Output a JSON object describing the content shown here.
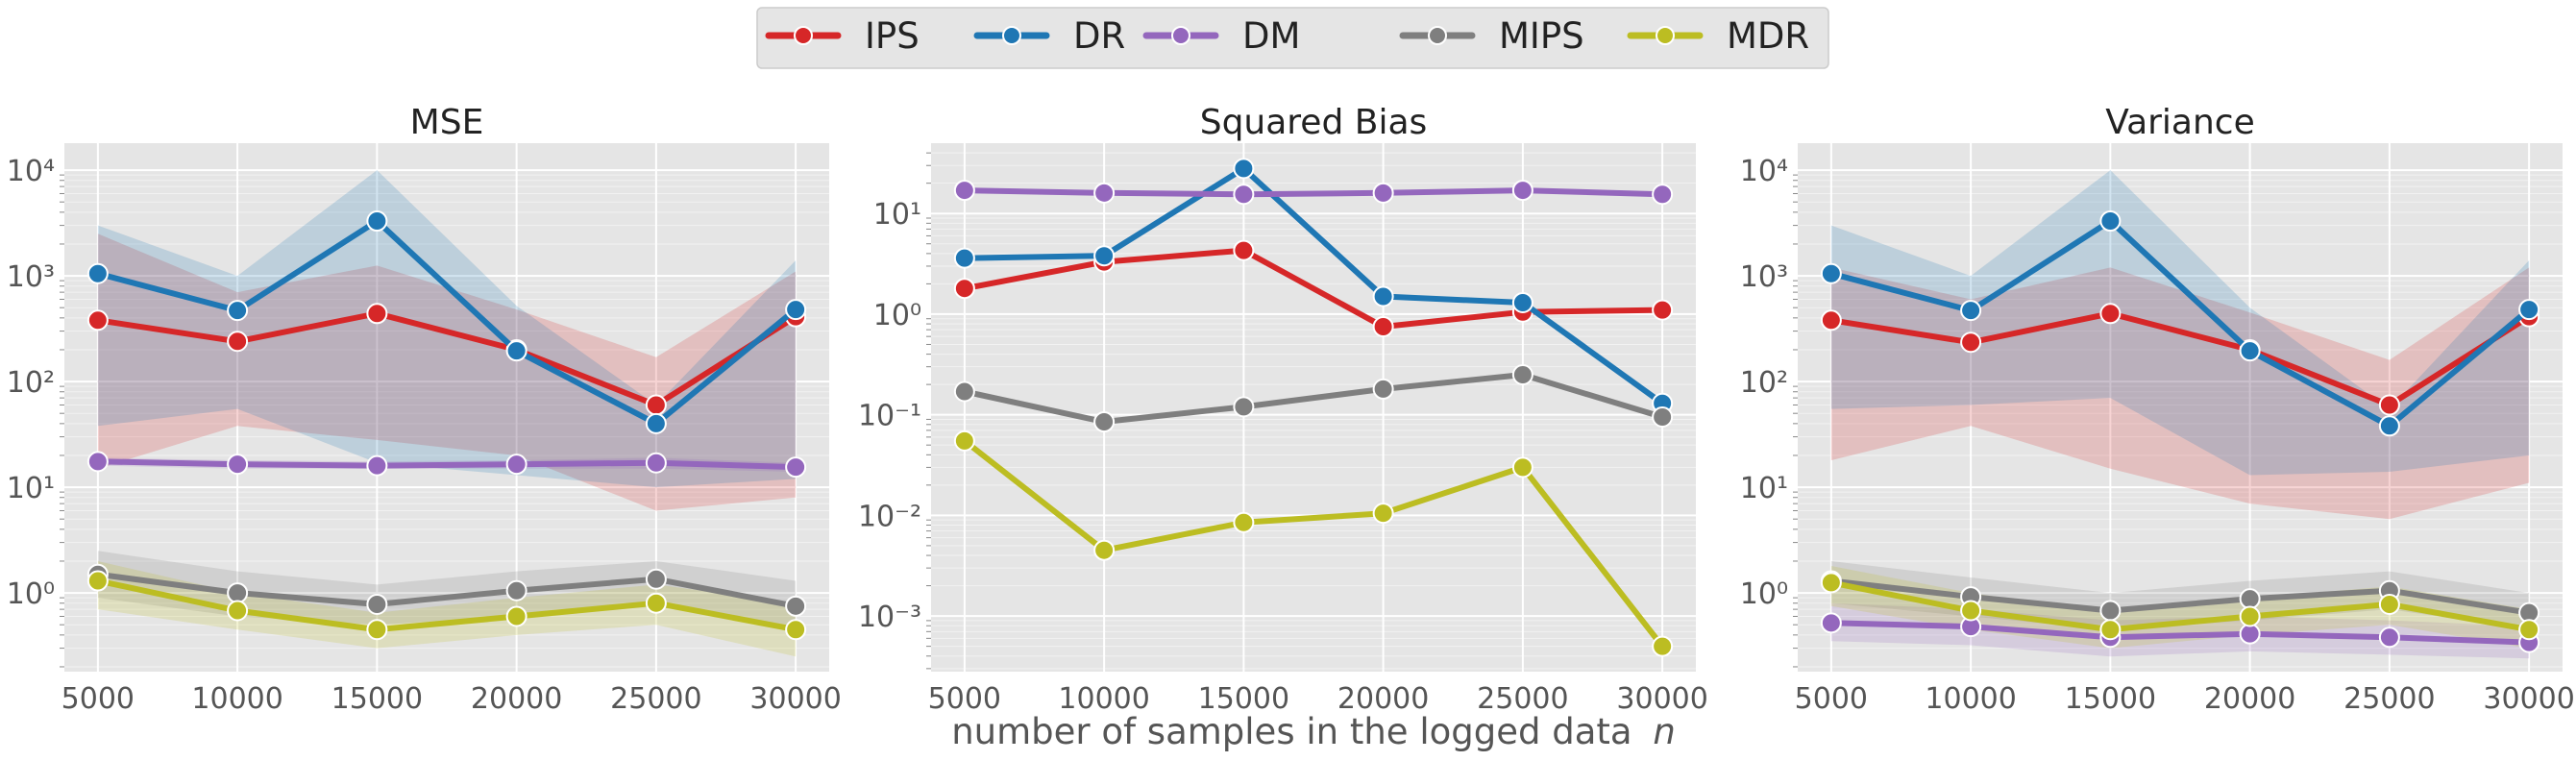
{
  "legend": {
    "placement": "top-center",
    "entries": [
      {
        "name": "IPS",
        "color": "#d62728"
      },
      {
        "name": "DR",
        "color": "#1f77b4"
      },
      {
        "name": "DM",
        "color": "#9467bd"
      },
      {
        "name": "MIPS",
        "color": "#7f7f7f"
      },
      {
        "name": "MDR",
        "color": "#bcbd22"
      }
    ]
  },
  "shared_xlabel": "number of samples in the logged data",
  "shared_xlabel_var": "n",
  "chart_data": [
    {
      "type": "line",
      "title": "MSE",
      "yscale": "log",
      "ylim": [
        0.18,
        18000
      ],
      "yticks": [
        1,
        10,
        100,
        1000,
        10000
      ],
      "xlim": [
        3800,
        31200
      ],
      "x": [
        5000,
        10000,
        15000,
        20000,
        25000,
        30000
      ],
      "xticks": [
        "5000",
        "10000",
        "15000",
        "20000",
        "25000",
        "30000"
      ],
      "grid": true,
      "series": [
        {
          "name": "IPS",
          "values": [
            380,
            240,
            440,
            200,
            60,
            410
          ],
          "band_low": [
            15,
            38,
            28,
            20,
            6,
            8
          ],
          "band_high": [
            2500,
            700,
            1250,
            480,
            170,
            1100
          ]
        },
        {
          "name": "DR",
          "values": [
            1050,
            470,
            3300,
            195,
            40,
            480
          ],
          "band_low": [
            38,
            55,
            17,
            13,
            10,
            12
          ],
          "band_high": [
            3000,
            1000,
            10000,
            520,
            60,
            1400
          ]
        },
        {
          "name": "DM",
          "values": [
            17.5,
            16.5,
            16,
            16.5,
            17,
            15.5
          ],
          "band_low": [
            16,
            15,
            15,
            15,
            15,
            14
          ],
          "band_high": [
            19,
            18,
            17.5,
            18,
            19,
            17
          ]
        },
        {
          "name": "MIPS",
          "values": [
            1.5,
            1.0,
            0.78,
            1.05,
            1.35,
            0.75
          ],
          "band_low": [
            0.9,
            0.6,
            0.5,
            0.6,
            0.8,
            0.45
          ],
          "band_high": [
            2.5,
            1.6,
            1.2,
            1.6,
            2.0,
            1.3
          ]
        },
        {
          "name": "MDR",
          "values": [
            1.3,
            0.68,
            0.45,
            0.6,
            0.8,
            0.45
          ],
          "band_low": [
            0.7,
            0.45,
            0.3,
            0.4,
            0.5,
            0.25
          ],
          "band_high": [
            2.0,
            1.0,
            0.65,
            0.9,
            1.2,
            0.8
          ]
        }
      ]
    },
    {
      "type": "line",
      "title": "Squared Bias",
      "yscale": "log",
      "ylim": [
        0.00028,
        50
      ],
      "yticks": [
        0.001,
        0.01,
        0.1,
        1,
        10
      ],
      "xlim": [
        3800,
        31200
      ],
      "x": [
        5000,
        10000,
        15000,
        20000,
        25000,
        30000
      ],
      "xticks": [
        "5000",
        "10000",
        "15000",
        "20000",
        "25000",
        "30000"
      ],
      "grid": true,
      "series": [
        {
          "name": "IPS",
          "values": [
            1.8,
            3.3,
            4.3,
            0.75,
            1.05,
            1.1
          ]
        },
        {
          "name": "DR",
          "values": [
            3.6,
            3.8,
            28,
            1.5,
            1.3,
            0.13
          ]
        },
        {
          "name": "DM",
          "values": [
            17,
            16,
            15.5,
            16,
            17,
            15.5
          ]
        },
        {
          "name": "MIPS",
          "values": [
            0.17,
            0.085,
            0.12,
            0.18,
            0.25,
            0.095
          ]
        },
        {
          "name": "MDR",
          "values": [
            0.055,
            0.0045,
            0.0085,
            0.0105,
            0.03,
            0.0005
          ]
        }
      ]
    },
    {
      "type": "line",
      "title": "Variance",
      "yscale": "log",
      "ylim": [
        0.18,
        18000
      ],
      "yticks": [
        1,
        10,
        100,
        1000,
        10000
      ],
      "xlim": [
        3800,
        31200
      ],
      "x": [
        5000,
        10000,
        15000,
        20000,
        25000,
        30000
      ],
      "xticks": [
        "5000",
        "10000",
        "15000",
        "20000",
        "25000",
        "30000"
      ],
      "grid": true,
      "series": [
        {
          "name": "IPS",
          "values": [
            380,
            235,
            440,
            200,
            60,
            410
          ],
          "band_low": [
            18,
            38,
            15,
            7,
            5,
            11
          ],
          "band_high": [
            1200,
            600,
            1200,
            450,
            160,
            1200
          ]
        },
        {
          "name": "DR",
          "values": [
            1050,
            470,
            3300,
            195,
            38,
            480
          ],
          "band_low": [
            55,
            60,
            70,
            13,
            14,
            20
          ],
          "band_high": [
            3000,
            1000,
            10000,
            500,
            55,
            1400
          ]
        },
        {
          "name": "DM",
          "values": [
            0.52,
            0.48,
            0.38,
            0.41,
            0.38,
            0.34
          ],
          "band_low": [
            0.35,
            0.32,
            0.25,
            0.28,
            0.26,
            0.24
          ],
          "band_high": [
            0.8,
            0.7,
            0.55,
            0.6,
            0.55,
            0.48
          ]
        },
        {
          "name": "MIPS",
          "values": [
            1.3,
            0.92,
            0.68,
            0.88,
            1.05,
            0.65
          ],
          "band_low": [
            0.8,
            0.6,
            0.45,
            0.55,
            0.7,
            0.45
          ],
          "band_high": [
            2.0,
            1.4,
            1.0,
            1.3,
            1.6,
            1.0
          ]
        },
        {
          "name": "MDR",
          "values": [
            1.25,
            0.68,
            0.45,
            0.6,
            0.78,
            0.45
          ],
          "band_low": [
            0.75,
            0.45,
            0.3,
            0.4,
            0.5,
            0.3
          ],
          "band_high": [
            1.8,
            1.0,
            0.65,
            0.9,
            1.15,
            0.7
          ]
        }
      ]
    }
  ]
}
